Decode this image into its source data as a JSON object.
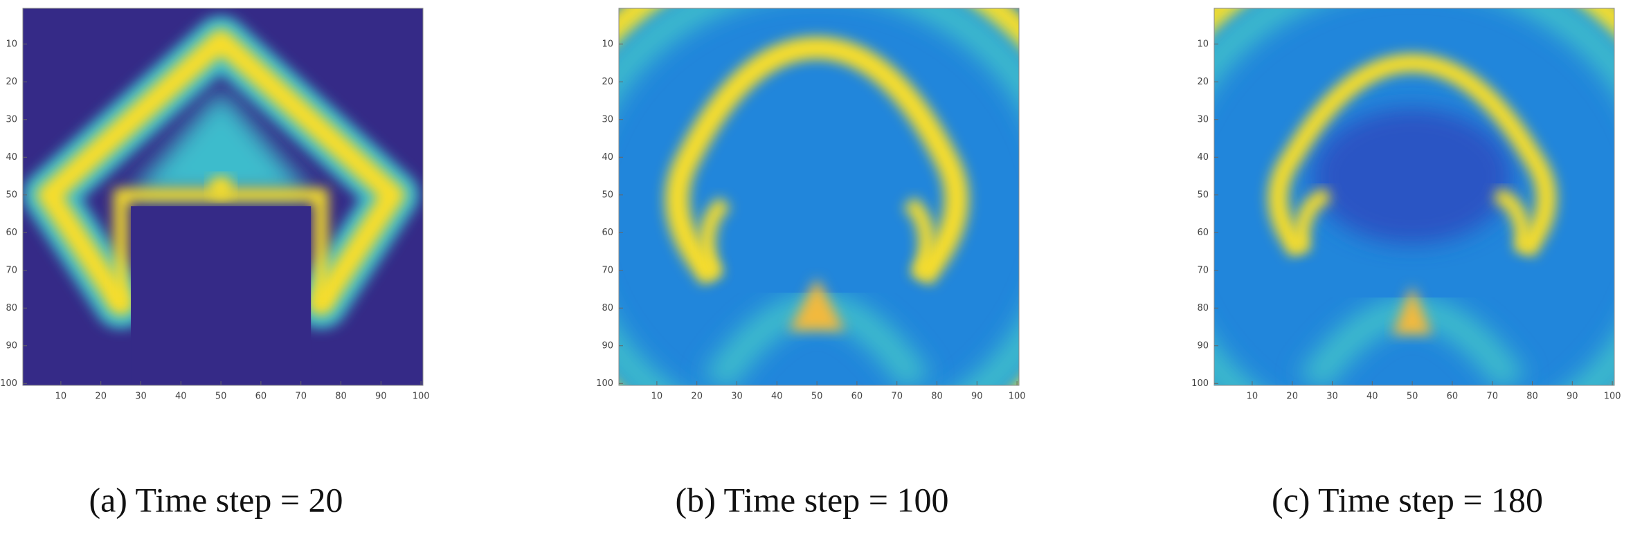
{
  "chart_data": [
    {
      "type": "heatmap",
      "caption": "(a) Time step = 20",
      "xlim": [
        0.5,
        100.5
      ],
      "ylim": [
        0.5,
        100.5
      ],
      "y_reversed": true,
      "xticks": [
        10,
        20,
        30,
        40,
        50,
        60,
        70,
        80,
        90,
        100
      ],
      "yticks": [
        10,
        20,
        30,
        40,
        50,
        60,
        70,
        80,
        90,
        100
      ]
    },
    {
      "type": "heatmap",
      "caption": "(b) Time step = 100",
      "xlim": [
        0.5,
        100.5
      ],
      "ylim": [
        0.5,
        100.5
      ],
      "y_reversed": true,
      "xticks": [
        10,
        20,
        30,
        40,
        50,
        60,
        70,
        80,
        90,
        100
      ],
      "yticks": [
        10,
        20,
        30,
        40,
        50,
        60,
        70,
        80,
        90,
        100
      ]
    },
    {
      "type": "heatmap",
      "caption": "(c) Time step = 180",
      "xlim": [
        0.5,
        100.5
      ],
      "ylim": [
        0.5,
        100.5
      ],
      "y_reversed": true,
      "xticks": [
        10,
        20,
        30,
        40,
        50,
        60,
        70,
        80,
        90,
        100
      ],
      "yticks": [
        10,
        20,
        30,
        40,
        50,
        60,
        70,
        80,
        90,
        100
      ]
    }
  ]
}
